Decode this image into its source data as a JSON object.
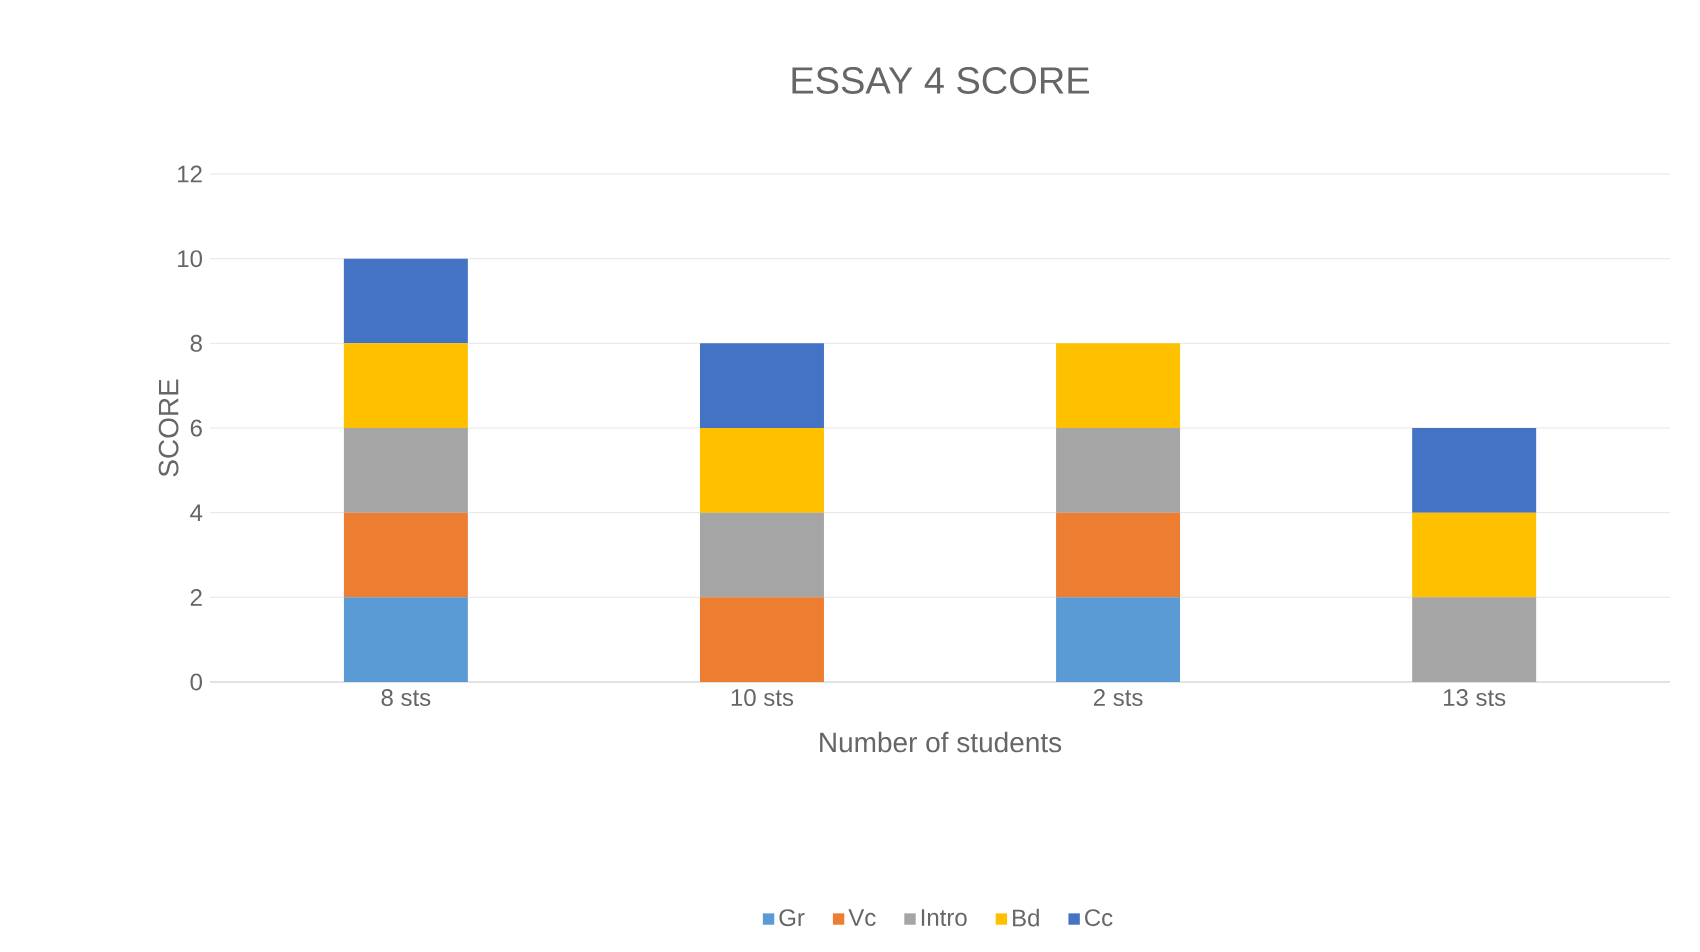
{
  "chart_data": {
    "type": "bar",
    "stacked": true,
    "title": "ESSAY 4 SCORE",
    "xlabel": "Number of students",
    "ylabel": "SCORE",
    "categories": [
      "8 sts",
      "10 sts",
      "2 sts",
      "13 sts"
    ],
    "series": [
      {
        "name": "Gr",
        "color": "#5b9bd5",
        "values": [
          2,
          0,
          2,
          0
        ]
      },
      {
        "name": "Vc",
        "color": "#ed7d31",
        "values": [
          2,
          2,
          2,
          0
        ]
      },
      {
        "name": "Intro",
        "color": "#a5a5a5",
        "values": [
          2,
          2,
          2,
          2
        ]
      },
      {
        "name": "Bd",
        "color": "#ffc000",
        "values": [
          2,
          2,
          2,
          2
        ]
      },
      {
        "name": "Cc",
        "color": "#4472c4",
        "values": [
          2,
          2,
          0,
          2
        ]
      }
    ],
    "ylim": [
      0,
      12
    ],
    "yticks": [
      0,
      2,
      4,
      6,
      8,
      10,
      12
    ],
    "grid": "y",
    "legend": "bottom"
  }
}
